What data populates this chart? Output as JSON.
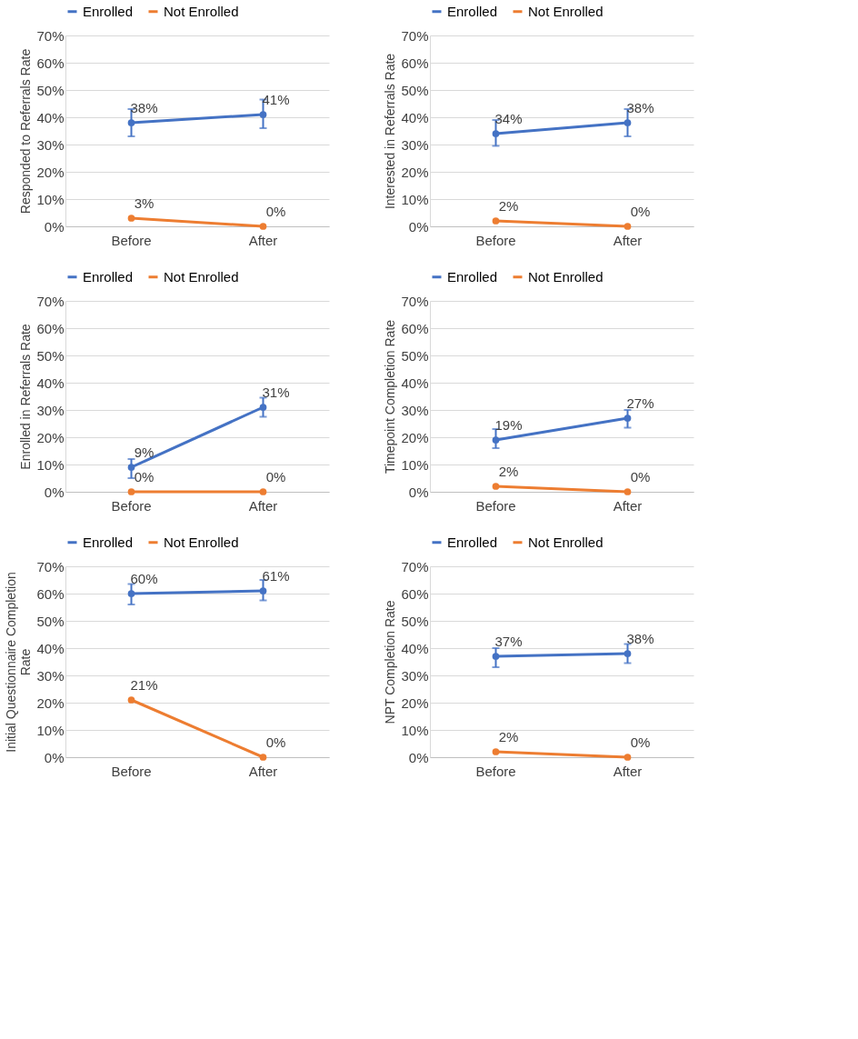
{
  "chart_data": [
    {
      "type": "line",
      "ylabel": "Responded to Referrals Rate",
      "categories": [
        "Before",
        "After"
      ],
      "ylim": [
        0,
        70
      ],
      "yticks": [
        {
          "value": 0,
          "label": "0%"
        },
        {
          "value": 10,
          "label": "10%"
        },
        {
          "value": 20,
          "label": "20%"
        },
        {
          "value": 30,
          "label": "30%"
        },
        {
          "value": 40,
          "label": "40%"
        },
        {
          "value": 50,
          "label": "50%"
        },
        {
          "value": 60,
          "label": "60%"
        },
        {
          "value": 70,
          "label": "70%"
        }
      ],
      "grid": "y",
      "legend": "top",
      "marker": "circle",
      "line_style": "solid",
      "series": [
        {
          "name": "Enrolled",
          "color": "#4472c4",
          "values": [
            38,
            41
          ],
          "errors": [
            [
              33,
              43
            ],
            [
              36,
              46.5
            ]
          ],
          "value_labels": [
            "38%",
            "41%"
          ]
        },
        {
          "name": "Not Enrolled",
          "color": "#ed7d31",
          "values": [
            3,
            0
          ],
          "value_labels": [
            "3%",
            "0%"
          ]
        }
      ]
    },
    {
      "type": "line",
      "ylabel": "Interested in Referrals Rate",
      "categories": [
        "Before",
        "After"
      ],
      "ylim": [
        0,
        70
      ],
      "yticks": [
        {
          "value": 0,
          "label": "0%"
        },
        {
          "value": 10,
          "label": "10%"
        },
        {
          "value": 20,
          "label": "20%"
        },
        {
          "value": 30,
          "label": "30%"
        },
        {
          "value": 40,
          "label": "40%"
        },
        {
          "value": 50,
          "label": "50%"
        },
        {
          "value": 60,
          "label": "60%"
        },
        {
          "value": 70,
          "label": "70%"
        }
      ],
      "grid": "y",
      "legend": "top",
      "marker": "circle",
      "line_style": "solid",
      "series": [
        {
          "name": "Enrolled",
          "color": "#4472c4",
          "values": [
            34,
            38
          ],
          "errors": [
            [
              29.5,
              39
            ],
            [
              33,
              43
            ]
          ],
          "value_labels": [
            "34%",
            "38%"
          ]
        },
        {
          "name": "Not Enrolled",
          "color": "#ed7d31",
          "values": [
            2,
            0
          ],
          "value_labels": [
            "2%",
            "0%"
          ]
        }
      ]
    },
    {
      "type": "line",
      "ylabel": "Enrolled in Referrals Rate",
      "categories": [
        "Before",
        "After"
      ],
      "ylim": [
        0,
        70
      ],
      "yticks": [
        {
          "value": 0,
          "label": "0%"
        },
        {
          "value": 10,
          "label": "10%"
        },
        {
          "value": 20,
          "label": "20%"
        },
        {
          "value": 30,
          "label": "30%"
        },
        {
          "value": 40,
          "label": "40%"
        },
        {
          "value": 50,
          "label": "50%"
        },
        {
          "value": 60,
          "label": "60%"
        },
        {
          "value": 70,
          "label": "70%"
        }
      ],
      "grid": "y",
      "legend": "top",
      "marker": "circle",
      "line_style": "solid",
      "series": [
        {
          "name": "Enrolled",
          "color": "#4472c4",
          "values": [
            9,
            31
          ],
          "errors": [
            [
              5,
              12
            ],
            [
              27.5,
              34.5
            ]
          ],
          "value_labels": [
            "9%",
            "31%"
          ]
        },
        {
          "name": "Not Enrolled",
          "color": "#ed7d31",
          "values": [
            0,
            0
          ],
          "value_labels": [
            "0%",
            "0%"
          ]
        }
      ]
    },
    {
      "type": "line",
      "ylabel": "Timepoint Completion Rate",
      "categories": [
        "Before",
        "After"
      ],
      "ylim": [
        0,
        70
      ],
      "yticks": [
        {
          "value": 0,
          "label": "0%"
        },
        {
          "value": 10,
          "label": "10%"
        },
        {
          "value": 20,
          "label": "20%"
        },
        {
          "value": 30,
          "label": "30%"
        },
        {
          "value": 40,
          "label": "40%"
        },
        {
          "value": 50,
          "label": "50%"
        },
        {
          "value": 60,
          "label": "60%"
        },
        {
          "value": 70,
          "label": "70%"
        }
      ],
      "grid": "y",
      "legend": "top",
      "marker": "circle",
      "line_style": "solid",
      "series": [
        {
          "name": "Enrolled",
          "color": "#4472c4",
          "values": [
            19,
            27
          ],
          "errors": [
            [
              16,
              23
            ],
            [
              23.5,
              30
            ]
          ],
          "value_labels": [
            "19%",
            "27%"
          ]
        },
        {
          "name": "Not Enrolled",
          "color": "#ed7d31",
          "values": [
            2,
            0
          ],
          "value_labels": [
            "2%",
            "0%"
          ]
        }
      ]
    },
    {
      "type": "line",
      "ylabel": "Initial Questionnaire Completion Rate",
      "categories": [
        "Before",
        "After"
      ],
      "ylim": [
        0,
        70
      ],
      "yticks": [
        {
          "value": 0,
          "label": "0%"
        },
        {
          "value": 10,
          "label": "10%"
        },
        {
          "value": 20,
          "label": "20%"
        },
        {
          "value": 30,
          "label": "30%"
        },
        {
          "value": 40,
          "label": "40%"
        },
        {
          "value": 50,
          "label": "50%"
        },
        {
          "value": 60,
          "label": "60%"
        },
        {
          "value": 70,
          "label": "70%"
        }
      ],
      "grid": "y",
      "legend": "top",
      "marker": "circle",
      "line_style": "solid",
      "series": [
        {
          "name": "Enrolled",
          "color": "#4472c4",
          "values": [
            60,
            61
          ],
          "errors": [
            [
              56,
              63.5
            ],
            [
              57.5,
              65
            ]
          ],
          "value_labels": [
            "60%",
            "61%"
          ]
        },
        {
          "name": "Not Enrolled",
          "color": "#ed7d31",
          "values": [
            21,
            0
          ],
          "value_labels": [
            "21%",
            "0%"
          ]
        }
      ]
    },
    {
      "type": "line",
      "ylabel": "NPT Completion Rate",
      "categories": [
        "Before",
        "After"
      ],
      "ylim": [
        0,
        70
      ],
      "yticks": [
        {
          "value": 0,
          "label": "0%"
        },
        {
          "value": 10,
          "label": "10%"
        },
        {
          "value": 20,
          "label": "20%"
        },
        {
          "value": 30,
          "label": "30%"
        },
        {
          "value": 40,
          "label": "40%"
        },
        {
          "value": 50,
          "label": "50%"
        },
        {
          "value": 60,
          "label": "60%"
        },
        {
          "value": 70,
          "label": "70%"
        }
      ],
      "grid": "y",
      "legend": "top",
      "marker": "circle",
      "line_style": "solid",
      "series": [
        {
          "name": "Enrolled",
          "color": "#4472c4",
          "values": [
            37,
            38
          ],
          "errors": [
            [
              33,
              40
            ],
            [
              34.5,
              41.5
            ]
          ],
          "value_labels": [
            "37%",
            "38%"
          ]
        },
        {
          "name": "Not Enrolled",
          "color": "#ed7d31",
          "values": [
            2,
            0
          ],
          "value_labels": [
            "2%",
            "0%"
          ]
        }
      ]
    }
  ]
}
